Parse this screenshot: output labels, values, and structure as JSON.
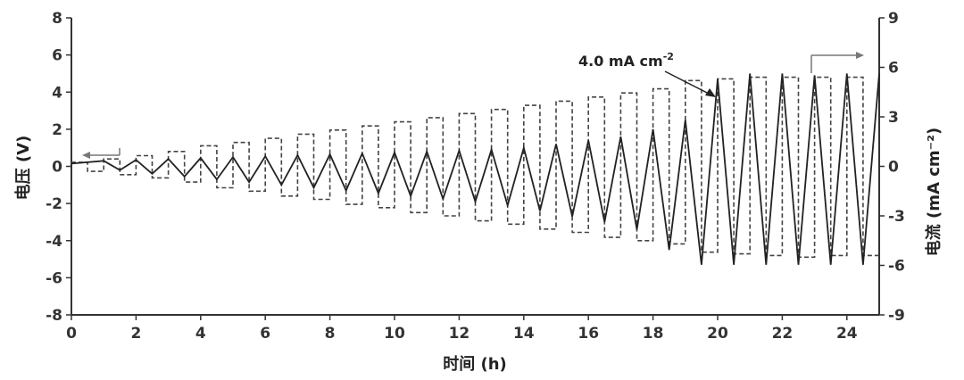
{
  "chart_data": {
    "type": "line",
    "xlabel": "时间 (h)",
    "ylabel_left": "电压 (V)",
    "ylabel_right": "电流 (mA cm⁻²)",
    "xlim": [
      0,
      25
    ],
    "ylim_left": [
      -8,
      8
    ],
    "ylim_right": [
      -9,
      9
    ],
    "x_ticks": [
      "0",
      "2",
      "4",
      "6",
      "8",
      "10",
      "12",
      "14",
      "16",
      "18",
      "20",
      "22",
      "24"
    ],
    "y_left_ticks": [
      "-8",
      "-6",
      "-4",
      "-2",
      "0",
      "2",
      "4",
      "6",
      "8"
    ],
    "y_right_ticks": [
      "-9",
      "-6",
      "-3",
      "0",
      "3",
      "6",
      "9"
    ],
    "annotation": {
      "text": "4.0 mA cm",
      "sup": "-2"
    },
    "series": [
      {
        "style": "dashed",
        "axis": "right",
        "x": [
          0,
          0.5,
          1,
          1.5,
          2,
          2.5,
          3,
          3.5,
          4,
          4.5,
          5,
          5.5,
          6,
          6.5,
          7,
          7.5,
          8,
          8.5,
          9,
          9.5,
          10,
          10.5,
          11,
          11.5,
          12,
          12.5,
          13,
          13.5,
          14,
          14.5,
          15,
          15.5,
          16,
          16.5,
          17,
          17.5,
          18,
          18.5,
          19,
          19.5,
          20,
          20.5,
          21,
          21.5,
          22,
          22.5,
          23,
          23.5,
          24,
          24.5,
          25
        ],
        "values": [
          0.25,
          -0.3,
          0.45,
          -0.5,
          0.65,
          -0.7,
          0.9,
          -0.95,
          1.25,
          -1.3,
          1.45,
          -1.5,
          1.7,
          -1.8,
          1.95,
          -2.0,
          2.2,
          -2.3,
          2.45,
          -2.5,
          2.7,
          -2.8,
          2.95,
          -3.0,
          3.2,
          -3.3,
          3.45,
          -3.5,
          3.7,
          -3.8,
          3.95,
          -4.0,
          4.2,
          -4.3,
          4.45,
          -4.5,
          4.7,
          -4.7,
          5.2,
          -5.2,
          5.3,
          -5.3,
          5.4,
          -5.4,
          5.4,
          -5.5,
          5.4,
          -5.4,
          5.4,
          -5.4,
          5.4
        ]
      },
      {
        "style": "solid",
        "axis": "left",
        "x": [
          0,
          1,
          1.5,
          2,
          2.5,
          3,
          3.5,
          4,
          4.5,
          5,
          5.5,
          6,
          6.5,
          7,
          7.5,
          8,
          8.5,
          9,
          9.5,
          10,
          10.5,
          11,
          11.5,
          12,
          12.5,
          13,
          13.5,
          14,
          14.5,
          15,
          15.5,
          16,
          16.5,
          17,
          17.5,
          18,
          18.5,
          19,
          19.5,
          20,
          20.5,
          21,
          21.5,
          22,
          22.5,
          23,
          23.5,
          24,
          24.5,
          25
        ],
        "values": [
          0.15,
          0.3,
          -0.2,
          0.35,
          -0.4,
          0.4,
          -0.55,
          0.45,
          -0.7,
          0.5,
          -0.85,
          0.55,
          -1.0,
          0.6,
          -1.15,
          0.65,
          -1.3,
          0.7,
          -1.45,
          0.75,
          -1.6,
          0.8,
          -1.75,
          0.85,
          -1.9,
          0.9,
          -2.1,
          1.0,
          -2.4,
          1.2,
          -2.7,
          1.4,
          -3.0,
          1.6,
          -3.4,
          2.0,
          -4.5,
          2.5,
          -5.3,
          4.7,
          -5.3,
          5.0,
          -5.3,
          5.0,
          -5.3,
          4.9,
          -5.3,
          5.0,
          -5.3,
          5.0
        ]
      }
    ]
  }
}
